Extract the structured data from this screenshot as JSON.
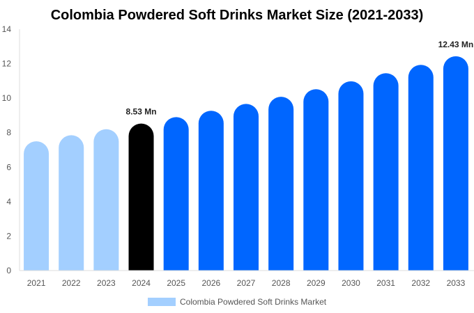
{
  "chart_data": {
    "type": "bar",
    "title": "Colombia Powdered Soft Drinks Market Size (2021-2033)",
    "xlabel": "",
    "ylabel": "",
    "ylim": [
      0,
      14
    ],
    "yticks": [
      0,
      2,
      4,
      6,
      8,
      10,
      12,
      14
    ],
    "categories": [
      "2021",
      "2022",
      "2023",
      "2024",
      "2025",
      "2026",
      "2027",
      "2028",
      "2029",
      "2030",
      "2031",
      "2032",
      "2033"
    ],
    "series": [
      {
        "name": "Colombia Powdered Soft Drinks Market",
        "values": [
          7.5,
          7.85,
          8.2,
          8.53,
          8.9,
          9.27,
          9.67,
          10.08,
          10.52,
          10.98,
          11.45,
          11.93,
          12.43
        ]
      }
    ],
    "data_labels": [
      {
        "category": "2024",
        "text": "8.53 Mn"
      },
      {
        "category": "2033",
        "text": "12.43 Mn"
      }
    ],
    "colors": {
      "historical": "#a3cfff",
      "base_year": "#000000",
      "forecast": "#0066ff"
    },
    "grid": false,
    "legend_position": "bottom"
  }
}
